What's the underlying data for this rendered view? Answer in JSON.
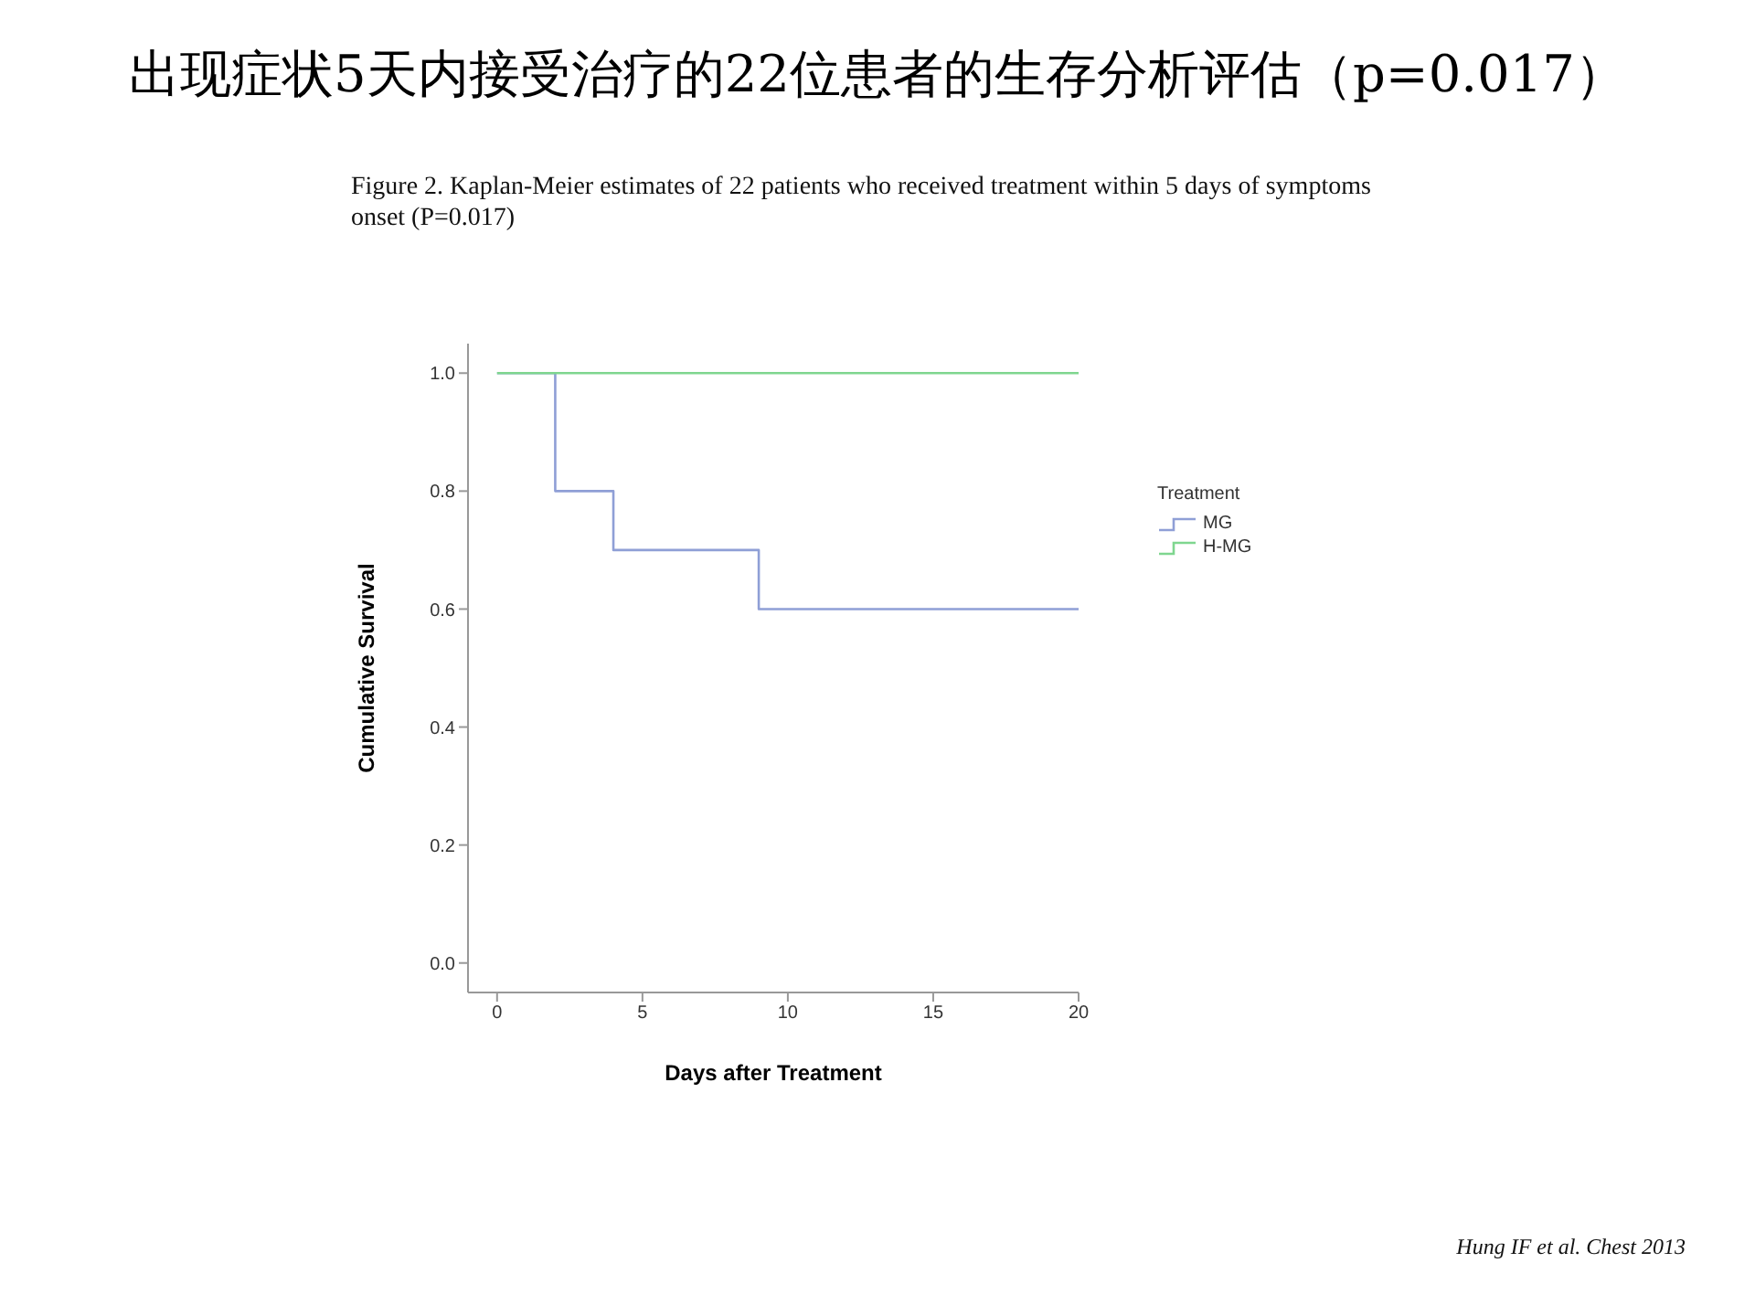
{
  "chart_data": {
    "type": "step",
    "title": "出现症状5天内接受治疗的22位患者的生存分析评估（p=0.017）",
    "subtitle": "Figure 2. Kaplan-Meier estimates of 22 patients who received treatment within 5 days of symptoms onset (P=0.017)",
    "xlabel": "Days after Treatment",
    "ylabel": "Cumulative Survival",
    "legend_title": "Treatment",
    "legend": "right",
    "grid": false,
    "marker": "none",
    "line_style": "solid",
    "series": [
      {
        "name": "MG",
        "color": "#8f9fd6",
        "x": [
          0,
          2,
          4,
          9,
          20
        ],
        "values": [
          1,
          0.8,
          0.7,
          0.6,
          0.6
        ]
      },
      {
        "name": "H-MG",
        "color": "#7fd68f",
        "x": [
          0,
          20
        ],
        "values": [
          1,
          1
        ]
      }
    ],
    "xlim": [
      -1,
      20
    ],
    "xticks": [
      0,
      5,
      10,
      15,
      20
    ],
    "ylim": [
      -0.05,
      1.05
    ],
    "yticks": [
      {
        "value": 0,
        "label": "0.0"
      },
      {
        "value": 0.2,
        "label": "0.2"
      },
      {
        "value": 0.4,
        "label": "0.4"
      },
      {
        "value": 0.6,
        "label": "0.6"
      },
      {
        "value": 0.8,
        "label": "0.8"
      },
      {
        "value": 1,
        "label": "1.0"
      }
    ],
    "annotations": [
      "Hung IF et al. Chest 2013"
    ]
  }
}
